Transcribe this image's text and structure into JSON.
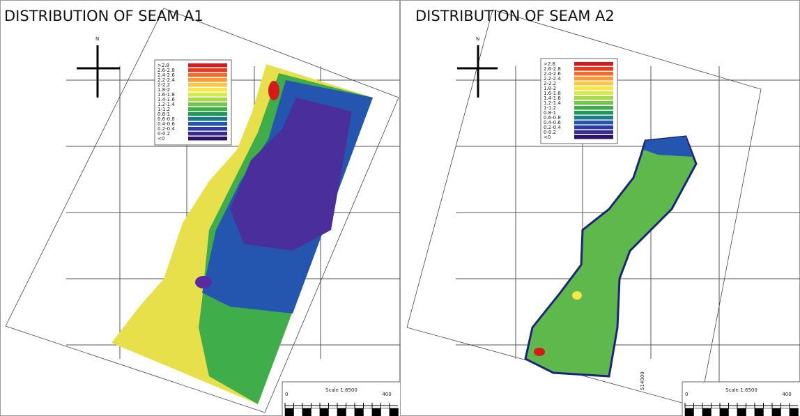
{
  "panels": [
    {
      "title": "DISTRIBUTION OF SEAM A1",
      "north": "N",
      "legend": [
        {
          "label": ">2.8",
          "color": "#d7191c"
        },
        {
          "label": "2.6-2.8",
          "color": "#e83a1f"
        },
        {
          "label": "2.4-2.6",
          "color": "#f46d2a"
        },
        {
          "label": "2.2-2.4",
          "color": "#fa9a35"
        },
        {
          "label": "2-2.2",
          "color": "#fdc540"
        },
        {
          "label": "1.8-2",
          "color": "#f6e84a"
        },
        {
          "label": "1.6-1.8",
          "color": "#d6ea4c"
        },
        {
          "label": "1.4-1.6",
          "color": "#a8d94d"
        },
        {
          "label": "1.2-1.4",
          "color": "#74c44d"
        },
        {
          "label": "1-1.2",
          "color": "#3fae4a"
        },
        {
          "label": "0.8-1",
          "color": "#1d9a5a"
        },
        {
          "label": "0.6-0.8",
          "color": "#1b7a8c"
        },
        {
          "label": "0.4-0.6",
          "color": "#2456b0"
        },
        {
          "label": "0.2-0.4",
          "color": "#2d3aa6"
        },
        {
          "label": "0-0.2",
          "color": "#3b2a96"
        },
        {
          "label": "<0",
          "color": "#2a1468"
        }
      ],
      "scale": {
        "label": "Scale 1:6500",
        "start": "0",
        "end": "400"
      }
    },
    {
      "title": "DISTRIBUTION OF SEAM A2",
      "north": "N",
      "legend": [
        {
          "label": ">2.8",
          "color": "#d7191c"
        },
        {
          "label": "2.6-2.8",
          "color": "#e83a1f"
        },
        {
          "label": "2.4-2.6",
          "color": "#f46d2a"
        },
        {
          "label": "2.2-2.4",
          "color": "#fa9a35"
        },
        {
          "label": "2-2.2",
          "color": "#fdc540"
        },
        {
          "label": "1.8-2",
          "color": "#f6e84a"
        },
        {
          "label": "1.6-1.8",
          "color": "#d6ea4c"
        },
        {
          "label": "1.4-1.6",
          "color": "#a8d94d"
        },
        {
          "label": "1.2-1.4",
          "color": "#74c44d"
        },
        {
          "label": "1-1.2",
          "color": "#3fae4a"
        },
        {
          "label": "0.8-1",
          "color": "#1d9a5a"
        },
        {
          "label": "0.6-0.8",
          "color": "#1b7a8c"
        },
        {
          "label": "0.4-0.6",
          "color": "#2456b0"
        },
        {
          "label": "0.2-0.4",
          "color": "#2d3aa6"
        },
        {
          "label": "0-0.2",
          "color": "#3b2a96"
        },
        {
          "label": "<0",
          "color": "#2a1468"
        }
      ],
      "scale": {
        "label": "Scale 1:6500",
        "start": "0",
        "end": "400"
      },
      "coordinate": "514000"
    }
  ]
}
